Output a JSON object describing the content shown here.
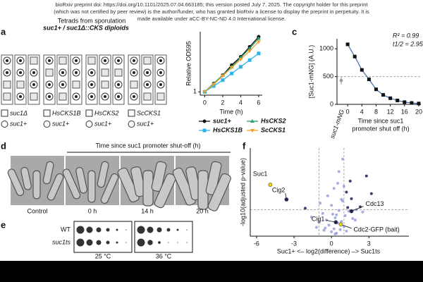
{
  "header": {
    "line1": "bioRxiv preprint doi: https://doi.org/10.1101/2025.07.04.663185; this version posted July 7, 2025. The copyright holder for this preprint",
    "line2": "(which was not certified by peer review) is the author/funder, who has granted bioRxiv a license to display the preprint in perpetuity. It is",
    "line3": "made available under aCC-BY-NC-ND 4.0 International license."
  },
  "panels": {
    "a": {
      "label": "a",
      "title": "Tetrads from sporulation",
      "subtitle": "suc1+ / suc1Δ::CKS diploids",
      "legend_boxes": [
        "suc1Δ",
        "HsCKS1B",
        "HsCKS2",
        "ScCKS1"
      ],
      "legend_circle": "suc1+"
    },
    "b": {
      "chart": {
        "type": "line",
        "x": [
          0,
          1,
          2,
          3,
          4,
          5,
          6
        ],
        "xlim": [
          -0.5,
          6.4
        ],
        "xticks": [
          0,
          2,
          4,
          6
        ],
        "ylim": [
          0.8,
          4.6
        ],
        "yticks": [
          1
        ],
        "xlabel": "Time (h)",
        "ylabel": "Relative OD595",
        "series": [
          {
            "name": "suc1+",
            "color": "#111111",
            "values": [
              1,
              1.5,
              2.0,
              2.6,
              3.1,
              3.7,
              4.3
            ]
          },
          {
            "name": "HsCKS2",
            "color": "#2a9d6a",
            "values": [
              1,
              1.5,
              2.0,
              2.5,
              3.05,
              3.6,
              4.2
            ]
          },
          {
            "name": "HsCKS1B",
            "color": "#29b6e8",
            "values": [
              1,
              1.35,
              1.7,
              2.1,
              2.5,
              2.9,
              3.3
            ]
          },
          {
            "name": "ScCKS1",
            "color": "#f0a030",
            "values": [
              1,
              1.45,
              1.95,
              2.45,
              2.95,
              3.45,
              4.0
            ]
          }
        ]
      }
    },
    "c": {
      "label": "c",
      "chart": {
        "type": "line",
        "x": [
          0,
          2,
          4,
          6,
          8,
          10,
          12,
          14,
          16,
          18,
          20
        ],
        "values": [
          1080,
          860,
          620,
          450,
          270,
          170,
          110,
          70,
          40,
          25,
          15
        ],
        "color": "#111111",
        "fit_color": "#3a6fb0",
        "xlim": [
          -3,
          20.6
        ],
        "xticks": [
          0,
          4,
          8,
          12,
          16,
          20
        ],
        "ylim": [
          0,
          1180
        ],
        "yticks": [
          0,
          500,
          1000
        ],
        "reference_line": 500,
        "reference_point": {
          "label": "suc1-mNG",
          "value": 430
        },
        "ylabel": "[Suc1-mNG] (A.U.)",
        "xlabel": "Time since suc1",
        "xlabel2": "promoter shut off (h)",
        "annotations": [
          "R² = 0.99",
          "t1/2 = 2.95 h"
        ]
      }
    },
    "d": {
      "label": "d",
      "title": "Time since suc1 promoter shut-off (h)",
      "images": [
        "Control",
        "0 h",
        "14 h",
        "20 h"
      ]
    },
    "e": {
      "label": "e",
      "rows": [
        "WT",
        "suc1ts"
      ],
      "plates": [
        "25 °C",
        "36 °C"
      ]
    },
    "f": {
      "label": "f",
      "chart": {
        "type": "scatter",
        "xlim": [
          -6.5,
          6.2
        ],
        "xticks": [
          -6,
          -3,
          0,
          3
        ],
        "ylim": [
          0,
          12
        ],
        "ylabel": "-log10(adjusted p-value)",
        "xlabel": "Suc1+ <– log2(difference) –> Suc1ts",
        "threshold_y": 3.6,
        "threshold_x": [
          -1,
          1
        ],
        "color": "#9aa0dc",
        "sig_color": "#1b2058",
        "points": {
          "x": [
            -2.1,
            -1.6,
            -1.2,
            -0.9,
            -0.6,
            -0.4,
            -0.2,
            0,
            0.1,
            0.2,
            0.3,
            0.4,
            0.5,
            0.6,
            0.7,
            0.8,
            0.9,
            1.0,
            1.1,
            1.2,
            1.4,
            1.6,
            1.9,
            2.3,
            2.8,
            -0.3,
            0.2,
            0.5,
            0.8,
            1.3,
            -0.7,
            0.0,
            0.6,
            1.0,
            1.5,
            2.0,
            0.4,
            -1.0,
            0.9,
            1.7,
            0.3,
            -0.5,
            1.2,
            2.5,
            3.2
          ],
          "y": [
            3.8,
            2.6,
            1.2,
            4.5,
            0.8,
            2.2,
            1.5,
            0.6,
            3.0,
            1.0,
            2.5,
            0.4,
            1.8,
            3.5,
            0.9,
            2.0,
            4.8,
            1.3,
            2.8,
            6.0,
            3.4,
            5.1,
            2.2,
            4.0,
            8.2,
            5.5,
            6.5,
            7.2,
            5.0,
            3.9,
            3.1,
            4.2,
            8.8,
            6.8,
            7.5,
            3.6,
            2.9,
            1.9,
            10.5,
            2.4,
            0.3,
            1.1,
            0.7,
            3.3,
            5.8
          ]
        },
        "labeled": [
          {
            "label": "Suc1",
            "x": -4.9,
            "y": 7.0,
            "color": "#f5d000"
          },
          {
            "label": "Cig2",
            "x": -3.6,
            "y": 5.0,
            "color": "#1b2058"
          },
          {
            "label": "Cdc13",
            "x": 1.6,
            "y": 3.4,
            "color": "#1b2058"
          },
          {
            "label": "Cig1",
            "x": 0.35,
            "y": 1.9,
            "color": "#1b2058"
          },
          {
            "label": "Cdc2-GFP (bait)",
            "x": 0.75,
            "y": 1.6,
            "color": "#f5d000"
          }
        ]
      }
    }
  }
}
